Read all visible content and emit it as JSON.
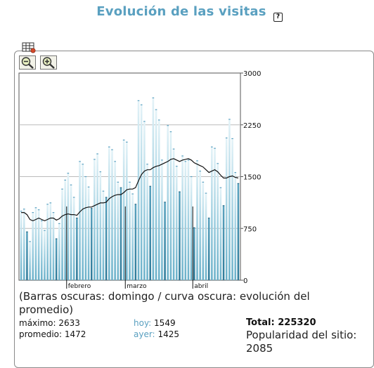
{
  "header": {
    "title": "Evolución de las visitas",
    "help_icon": "question-mark-icon"
  },
  "toolbar": {
    "table_icon": "table-icon",
    "zoom_out_icon": "zoom-out-icon",
    "zoom_in_icon": "zoom-in-icon"
  },
  "chart_data": {
    "type": "bar",
    "description_kind": "daily visits bars with moving-average line",
    "ylim": [
      0,
      3000
    ],
    "yticks": [
      "3000",
      "2250",
      "1500",
      "750",
      "0"
    ],
    "grid": true,
    "month_labels": [
      {
        "label": "febrero",
        "index": 16
      },
      {
        "label": "marzo",
        "index": 36
      },
      {
        "label": "abril",
        "index": 59
      }
    ],
    "values": [
      1000,
      1030,
      700,
      560,
      980,
      1050,
      1020,
      860,
      720,
      1100,
      1120,
      980,
      600,
      820,
      1320,
      1450,
      1550,
      1380,
      1200,
      900,
      1720,
      1680,
      1500,
      1350,
      1040,
      1750,
      1830,
      1570,
      1290,
      1200,
      1930,
      1890,
      1720,
      1420,
      1340,
      2030,
      2000,
      1420,
      1250,
      1100,
      2600,
      2540,
      2300,
      1680,
      1360,
      2640,
      2470,
      2320,
      1740,
      1130,
      2240,
      2150,
      1900,
      1650,
      1280,
      1800,
      1720,
      1740,
      1500,
      760,
      1730,
      1580,
      1420,
      1260,
      900,
      1930,
      1910,
      1690,
      1340,
      1080,
      2060,
      2330,
      2050,
      1560,
      1400
    ],
    "sunday_indices": [
      2,
      12,
      19,
      24,
      29,
      34,
      39,
      44,
      49,
      54,
      59,
      64,
      69,
      74
    ],
    "average": [
      980,
      980,
      950,
      880,
      860,
      880,
      900,
      880,
      860,
      880,
      900,
      900,
      870,
      890,
      930,
      950,
      960,
      950,
      950,
      940,
      990,
      1030,
      1050,
      1060,
      1060,
      1080,
      1100,
      1120,
      1120,
      1130,
      1180,
      1210,
      1230,
      1240,
      1240,
      1270,
      1310,
      1320,
      1320,
      1340,
      1440,
      1530,
      1580,
      1600,
      1600,
      1630,
      1650,
      1660,
      1680,
      1700,
      1720,
      1750,
      1760,
      1740,
      1720,
      1740,
      1750,
      1760,
      1740,
      1700,
      1680,
      1660,
      1640,
      1600,
      1560,
      1580,
      1600,
      1570,
      1520,
      1480,
      1480,
      1500,
      1510,
      1490,
      1480
    ]
  },
  "caption": "(Barras oscuras: domingo / curva oscura: evolución del promedio)",
  "stats": {
    "max_label": "máximo:",
    "max_value": "2633",
    "avg_label": "promedio:",
    "avg_value": "1472",
    "today_label": "hoy:",
    "today_value": "1549",
    "yesterday_label": "ayer:",
    "yesterday_value": "1425",
    "total_label": "Total:",
    "total_value": "225320",
    "popularity_label": "Popularidad del sitio:",
    "popularity_value": "2085"
  },
  "colors": {
    "title": "#5aa0c0",
    "bar_dark": "#4a93b0",
    "bar_light": "#a8d3e4"
  }
}
